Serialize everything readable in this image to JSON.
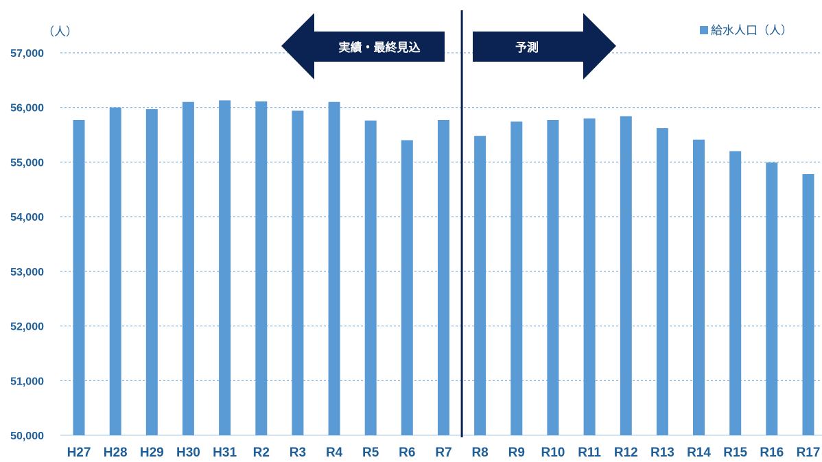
{
  "chart_data": {
    "type": "bar",
    "y_unit_label": "（人）",
    "categories": [
      "H27",
      "H28",
      "H29",
      "H30",
      "H31",
      "R2",
      "R3",
      "R4",
      "R5",
      "R6",
      "R7",
      "R8",
      "R9",
      "R10",
      "R11",
      "R12",
      "R13",
      "R14",
      "R15",
      "R16",
      "R17"
    ],
    "series": [
      {
        "name": "給水人口（人）",
        "color": "#5b9bd5",
        "values": [
          55770,
          56000,
          55970,
          56100,
          56130,
          56110,
          55940,
          56100,
          55760,
          55400,
          55770,
          55480,
          55740,
          55770,
          55800,
          55840,
          55620,
          55410,
          55200,
          54990,
          54780
        ]
      }
    ],
    "ylim": [
      50000,
      57000
    ],
    "y_ticks": [
      50000,
      51000,
      52000,
      53000,
      54000,
      55000,
      56000,
      57000
    ],
    "y_tick_labels": [
      "50,000",
      "51,000",
      "52,000",
      "53,000",
      "54,000",
      "55,000",
      "56,000",
      "57,000"
    ],
    "grid": true,
    "legend_position": "top-right",
    "divider_after_category": "R7",
    "annotations": {
      "left_arrow": "実績・最終見込",
      "right_arrow": "予測",
      "arrow_color": "#0b2353"
    }
  }
}
